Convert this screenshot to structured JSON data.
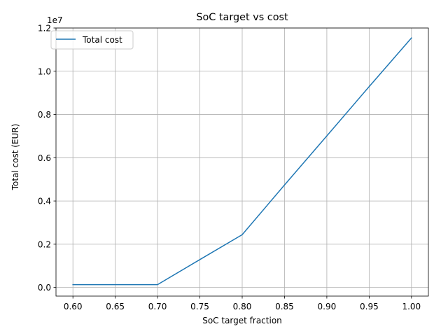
{
  "chart_data": {
    "type": "line",
    "title": "SoC target vs cost",
    "xlabel": "SoC target fraction",
    "ylabel": "Total cost (EUR)",
    "y_offset_label": "1e7",
    "x_scale_factor": 1,
    "y_scale_factor": 10000000,
    "xlim": [
      0.58,
      1.02
    ],
    "ylim": [
      -400000,
      12000000
    ],
    "x_ticks": [
      0.6,
      0.65,
      0.7,
      0.75,
      0.8,
      0.85,
      0.9,
      0.95,
      1.0
    ],
    "x_tick_labels": [
      "0.60",
      "0.65",
      "0.70",
      "0.75",
      "0.80",
      "0.85",
      "0.90",
      "0.95",
      "1.00"
    ],
    "y_ticks": [
      0,
      2000000,
      4000000,
      6000000,
      8000000,
      10000000,
      12000000
    ],
    "y_tick_labels": [
      "0.0",
      "0.2",
      "0.4",
      "0.6",
      "0.8",
      "1.0",
      "1.2"
    ],
    "grid": true,
    "legend_position": "upper-left",
    "series": [
      {
        "name": "Total cost",
        "color": "#1f77b4",
        "x": [
          0.6,
          0.65,
          0.7,
          0.75,
          0.8,
          0.85,
          0.9,
          0.95,
          1.0
        ],
        "y": [
          130000,
          130000,
          130000,
          1290000,
          2440000,
          4740000,
          7010000,
          9290000,
          11540000
        ]
      }
    ]
  }
}
